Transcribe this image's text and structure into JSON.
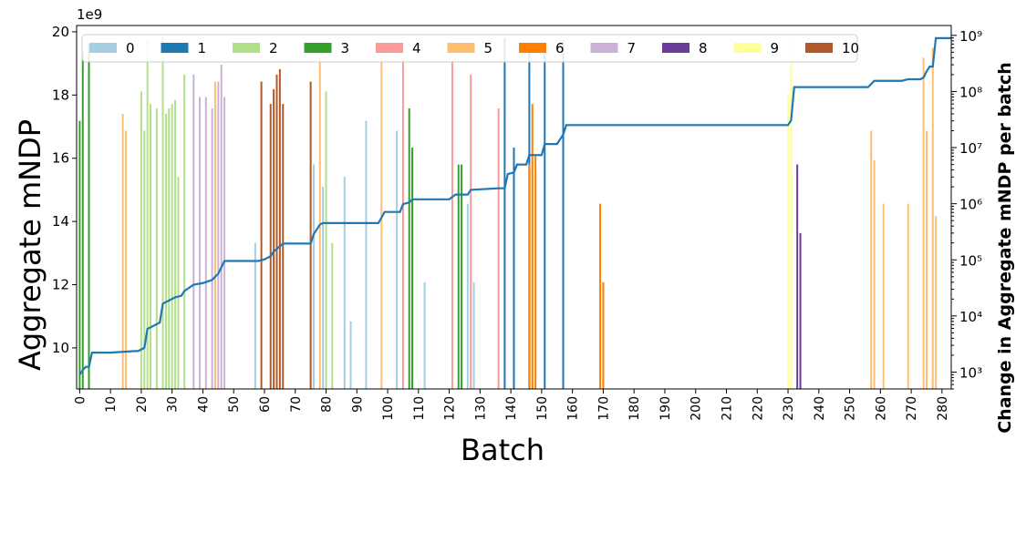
{
  "chart_data": {
    "type": "bar",
    "xlabel": "Batch",
    "ylabel_left": "Aggregate mNDP",
    "ylabel_right": "Change in Aggregate mNDP per batch",
    "y_offset_label": "1e9",
    "xlim": [
      -1,
      283
    ],
    "ylim_left": [
      8.7,
      20.2
    ],
    "ylim_right": [
      500,
      1500000000
    ],
    "right_axis_scale": "log",
    "grid": false,
    "legend_location": "top",
    "xticks": [
      0,
      10,
      20,
      30,
      40,
      50,
      60,
      70,
      80,
      90,
      100,
      110,
      120,
      130,
      140,
      150,
      160,
      170,
      180,
      190,
      200,
      210,
      220,
      230,
      240,
      250,
      260,
      270,
      280
    ],
    "yticks_left": [
      10,
      12,
      14,
      16,
      18,
      20
    ],
    "yticks_right": [
      {
        "value": 1000,
        "label": "10³"
      },
      {
        "value": 10000,
        "label": "10⁴"
      },
      {
        "value": 100000,
        "label": "10⁵"
      },
      {
        "value": 1000000,
        "label": "10⁶"
      },
      {
        "value": 10000000,
        "label": "10⁷"
      },
      {
        "value": 100000000,
        "label": "10⁸"
      },
      {
        "value": 1000000000,
        "label": "10⁹"
      }
    ],
    "series": [
      {
        "name": "0",
        "color": "#a6cee3",
        "bars": [
          [
            57,
            200000
          ],
          [
            75,
            4000000
          ],
          [
            76,
            5000000
          ],
          [
            79,
            2000000
          ],
          [
            86,
            3000000
          ],
          [
            88,
            8000
          ],
          [
            93,
            30000000
          ],
          [
            103,
            20000000
          ],
          [
            105,
            600
          ],
          [
            112,
            40000
          ],
          [
            126,
            1000000
          ],
          [
            128,
            40000
          ]
        ]
      },
      {
        "name": "1",
        "color": "#1f78b4",
        "bars": [
          [
            138,
            900000000
          ],
          [
            141,
            10000000
          ],
          [
            146,
            600000000
          ],
          [
            151,
            700000000
          ],
          [
            157,
            800000000
          ]
        ]
      },
      {
        "name": "2",
        "color": "#b2df8a",
        "bars": [
          [
            20,
            100000000
          ],
          [
            21,
            20000000
          ],
          [
            22,
            800000000
          ],
          [
            23,
            60000000
          ],
          [
            25,
            50000000
          ],
          [
            27,
            1000000000
          ],
          [
            28,
            40000000
          ],
          [
            29,
            50000000
          ],
          [
            30,
            60000000
          ],
          [
            31,
            70000000
          ],
          [
            32,
            3000000
          ],
          [
            34,
            200000000
          ],
          [
            80,
            100000000
          ],
          [
            82,
            200000
          ]
        ]
      },
      {
        "name": "3",
        "color": "#33a02c",
        "bars": [
          [
            0,
            30000000
          ],
          [
            1,
            500000000
          ],
          [
            3,
            700000000
          ],
          [
            107,
            50000000
          ],
          [
            108,
            10000000
          ],
          [
            123,
            5000000
          ],
          [
            124,
            5000000
          ]
        ]
      },
      {
        "name": "4",
        "color": "#fb9a99",
        "bars": [
          [
            105,
            400000000
          ],
          [
            121,
            350000000
          ],
          [
            127,
            200000000
          ],
          [
            136,
            50000000
          ]
        ]
      },
      {
        "name": "5",
        "color": "#fdbf6f",
        "bars": [
          [
            14,
            40000000
          ],
          [
            15,
            20000000
          ],
          [
            44,
            150000000
          ],
          [
            78,
            400000000
          ],
          [
            98,
            400000000
          ],
          [
            147,
            6000000
          ],
          [
            257,
            20000000
          ],
          [
            258,
            6000000
          ],
          [
            261,
            1000000
          ],
          [
            269,
            1000000
          ],
          [
            274,
            400000000
          ],
          [
            275,
            20000000
          ],
          [
            277,
            600000000
          ],
          [
            278,
            600000
          ]
        ]
      },
      {
        "name": "6",
        "color": "#ff7f00",
        "bars": [
          [
            146,
            5000000
          ],
          [
            147,
            60000000
          ],
          [
            148,
            7000000
          ],
          [
            169,
            1000000
          ],
          [
            170,
            40000
          ]
        ]
      },
      {
        "name": "7",
        "color": "#cab2d6",
        "bars": [
          [
            37,
            200000000
          ],
          [
            39,
            80000000
          ],
          [
            41,
            80000000
          ],
          [
            43,
            50000000
          ],
          [
            45,
            150000000
          ],
          [
            46,
            300000000
          ],
          [
            47,
            80000000
          ]
        ]
      },
      {
        "name": "8",
        "color": "#6a3d9a",
        "bars": [
          [
            233,
            5000000
          ],
          [
            234,
            300000
          ]
        ]
      },
      {
        "name": "9",
        "color": "#ffff99",
        "bars": [
          [
            230,
            90000000
          ],
          [
            231,
            900000000
          ]
        ]
      },
      {
        "name": "10",
        "color": "#b15928",
        "bars": [
          [
            59,
            150000000
          ],
          [
            62,
            60000000
          ],
          [
            63,
            110000000
          ],
          [
            64,
            200000000
          ],
          [
            65,
            250000000
          ],
          [
            66,
            60000000
          ],
          [
            75,
            150000000
          ]
        ]
      }
    ],
    "cumulative_line": {
      "color": "#1f78b4",
      "points": [
        [
          0,
          9.15
        ],
        [
          1,
          9.3
        ],
        [
          2,
          9.4
        ],
        [
          3,
          9.4
        ],
        [
          4,
          9.85
        ],
        [
          10,
          9.85
        ],
        [
          18,
          9.9
        ],
        [
          19,
          9.9
        ],
        [
          20,
          9.95
        ],
        [
          21,
          10.0
        ],
        [
          22,
          10.6
        ],
        [
          24,
          10.7
        ],
        [
          26,
          10.8
        ],
        [
          27,
          11.4
        ],
        [
          29,
          11.5
        ],
        [
          31,
          11.6
        ],
        [
          33,
          11.65
        ],
        [
          34,
          11.8
        ],
        [
          37,
          12.0
        ],
        [
          40,
          12.05
        ],
        [
          43,
          12.15
        ],
        [
          45,
          12.35
        ],
        [
          47,
          12.75
        ],
        [
          58,
          12.75
        ],
        [
          60,
          12.8
        ],
        [
          62,
          12.9
        ],
        [
          63,
          13.05
        ],
        [
          66,
          13.3
        ],
        [
          75,
          13.3
        ],
        [
          76,
          13.6
        ],
        [
          78,
          13.9
        ],
        [
          79,
          13.95
        ],
        [
          97,
          13.95
        ],
        [
          99,
          14.3
        ],
        [
          104,
          14.3
        ],
        [
          105,
          14.55
        ],
        [
          107,
          14.6
        ],
        [
          108,
          14.7
        ],
        [
          120,
          14.7
        ],
        [
          122,
          14.85
        ],
        [
          126,
          14.85
        ],
        [
          127,
          15.0
        ],
        [
          136,
          15.05
        ],
        [
          138,
          15.05
        ],
        [
          139,
          15.5
        ],
        [
          141,
          15.55
        ],
        [
          142,
          15.8
        ],
        [
          145,
          15.8
        ],
        [
          146,
          16.1
        ],
        [
          150,
          16.1
        ],
        [
          151,
          16.45
        ],
        [
          155,
          16.45
        ],
        [
          157,
          16.75
        ],
        [
          158,
          17.05
        ],
        [
          230,
          17.05
        ],
        [
          231,
          17.2
        ],
        [
          232,
          18.25
        ],
        [
          256,
          18.25
        ],
        [
          258,
          18.45
        ],
        [
          267,
          18.45
        ],
        [
          269,
          18.5
        ],
        [
          273,
          18.5
        ],
        [
          274,
          18.55
        ],
        [
          275,
          18.75
        ],
        [
          276,
          18.9
        ],
        [
          277,
          18.9
        ],
        [
          278,
          19.8
        ],
        [
          283,
          19.8
        ]
      ]
    }
  }
}
